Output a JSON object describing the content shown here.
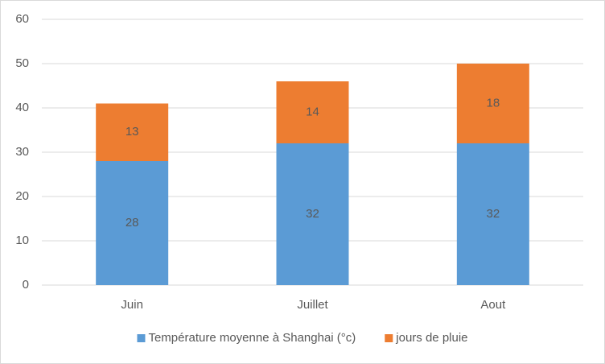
{
  "chart_data": {
    "type": "bar",
    "stacked": true,
    "categories": [
      "Juin",
      "Juillet",
      "Aout"
    ],
    "series": [
      {
        "name": "Température moyenne à Shanghai (°c)",
        "color": "#5b9bd5",
        "values": [
          28,
          32,
          32
        ]
      },
      {
        "name": "jours de pluie",
        "color": "#ed7d31",
        "values": [
          13,
          14,
          18
        ]
      }
    ],
    "ylim": [
      0,
      60
    ],
    "yticks": [
      0,
      10,
      20,
      30,
      40,
      50,
      60
    ],
    "grid": true,
    "data_labels": true,
    "legend": "bottom"
  }
}
